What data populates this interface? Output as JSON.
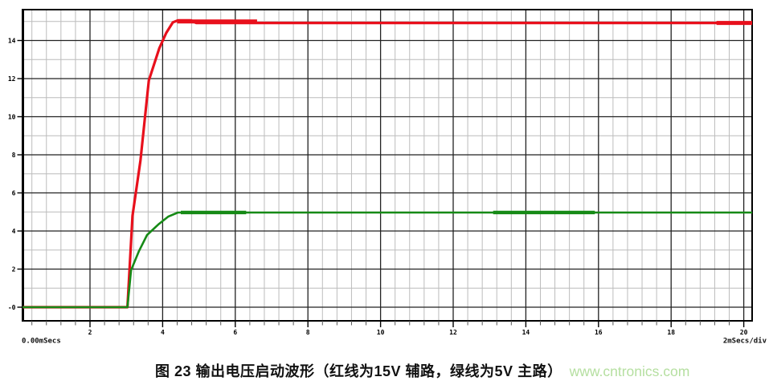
{
  "figure": {
    "caption": "图 23 输出电压启动波形（红线为15V 辅路，绿线为5V 主路）",
    "watermark": "www.cntronics.com",
    "watermark_color": "#b5dfa0"
  },
  "chart_data": {
    "type": "line",
    "title": "",
    "background": "#ffffff",
    "grid": {
      "enabled": true,
      "major_color": "#222222",
      "minor_color": "#bcbcbc"
    },
    "legend": "none",
    "x_axis": {
      "unit_label_left": "0.00mSecs",
      "unit_label_right": "2mSecs/div",
      "major_tick_labels": [
        "2",
        "4",
        "6",
        "8",
        "10",
        "12",
        "14",
        "16",
        "18",
        "20"
      ],
      "major_tick_values": [
        2,
        4,
        6,
        8,
        10,
        12,
        14,
        16,
        18,
        20
      ],
      "minor_step_ms": 0.4,
      "range_ms": [
        0,
        20.3
      ]
    },
    "y_axis": {
      "major_tick_labels": [
        "14",
        "12",
        "10",
        "8",
        "6",
        "4",
        "2",
        "-0"
      ],
      "major_tick_values": [
        14,
        12,
        10,
        8,
        6,
        4,
        2,
        0
      ],
      "minor_step_v": 1,
      "range_v": [
        -0.72,
        15.63
      ]
    },
    "series": [
      {
        "name": "15V 辅路",
        "color": "#e8101c",
        "final_value_v": 14.9,
        "points": [
          [
            0,
            0
          ],
          [
            3.03,
            0
          ],
          [
            3.17,
            4.8
          ],
          [
            3.39,
            7.7
          ],
          [
            3.62,
            11.9
          ],
          [
            3.91,
            13.6
          ],
          [
            4.1,
            14.4
          ],
          [
            4.28,
            14.95
          ],
          [
            4.43,
            15.06
          ],
          [
            4.78,
            15.06
          ],
          [
            4.92,
            14.92
          ],
          [
            20.3,
            14.92
          ]
        ],
        "thick_spans": [
          {
            "t_start": 4.4,
            "t_end": 6.6,
            "v": 15.0
          },
          {
            "t_start": 19.25,
            "t_end": 20.3,
            "v": 14.92
          }
        ]
      },
      {
        "name": "5V 主路",
        "color": "#168a16",
        "final_value_v": 4.97,
        "points": [
          [
            0,
            0
          ],
          [
            3.03,
            0
          ],
          [
            3.13,
            1.94
          ],
          [
            3.35,
            2.95
          ],
          [
            3.57,
            3.79
          ],
          [
            3.88,
            4.34
          ],
          [
            4.16,
            4.76
          ],
          [
            4.42,
            4.97
          ],
          [
            20.3,
            4.97
          ]
        ],
        "thick_spans": [
          {
            "t_start": 4.5,
            "t_end": 6.3,
            "v": 4.97
          },
          {
            "t_start": 13.1,
            "t_end": 15.9,
            "v": 4.97
          }
        ]
      }
    ]
  }
}
